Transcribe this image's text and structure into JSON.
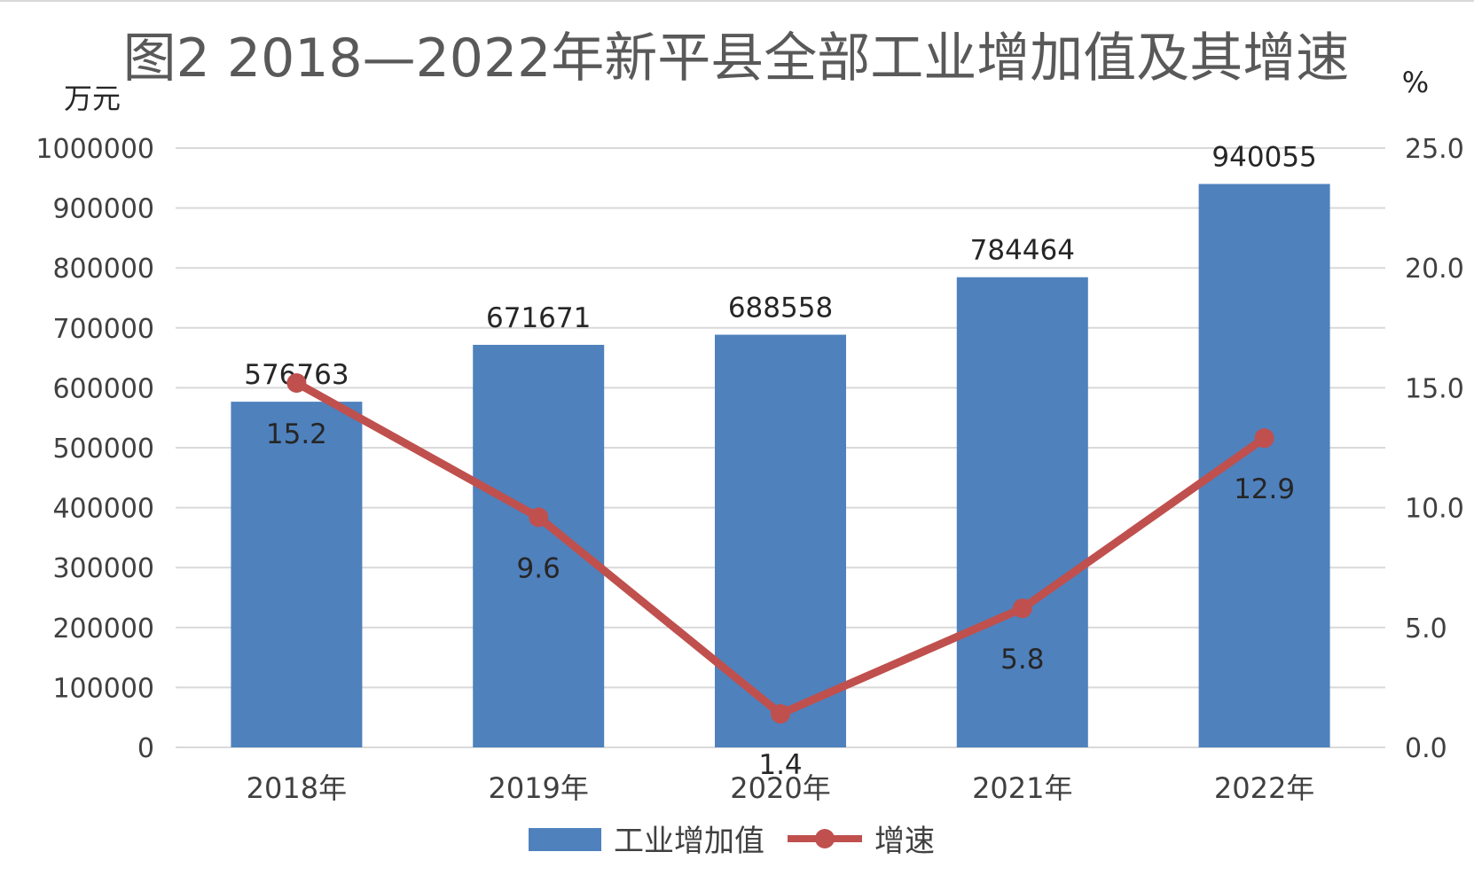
{
  "chart_data": {
    "type": "bar+line",
    "title": "图2  2018—2022年新平县全部工业增加值及其增速",
    "y_left_unit": "万元",
    "y_right_unit": "%",
    "categories": [
      "2018年",
      "2019年",
      "2020年",
      "2021年",
      "2022年"
    ],
    "y_left_ticks": [
      "0",
      "100000",
      "200000",
      "300000",
      "400000",
      "500000",
      "600000",
      "700000",
      "800000",
      "900000",
      "1000000"
    ],
    "y_right_ticks": [
      "0.0",
      "5.0",
      "10.0",
      "15.0",
      "20.0",
      "25.0"
    ],
    "y_left_lim": [
      0,
      1000000
    ],
    "y_right_lim": [
      0,
      25
    ],
    "grid": true,
    "legend_position": "bottom",
    "series": [
      {
        "name": "工业增加值",
        "type": "bar",
        "axis": "left",
        "color": "#4f81bd",
        "values": [
          576763,
          671671,
          688558,
          784464,
          940055
        ],
        "labels": [
          "576763",
          "671671",
          "688558",
          "784464",
          "940055"
        ]
      },
      {
        "name": "增速",
        "type": "line",
        "axis": "right",
        "color": "#c0504d",
        "values": [
          15.2,
          9.6,
          1.4,
          5.8,
          12.9
        ],
        "labels": [
          "15.2",
          "9.6",
          "1.4",
          "5.8",
          "12.9"
        ]
      }
    ]
  }
}
